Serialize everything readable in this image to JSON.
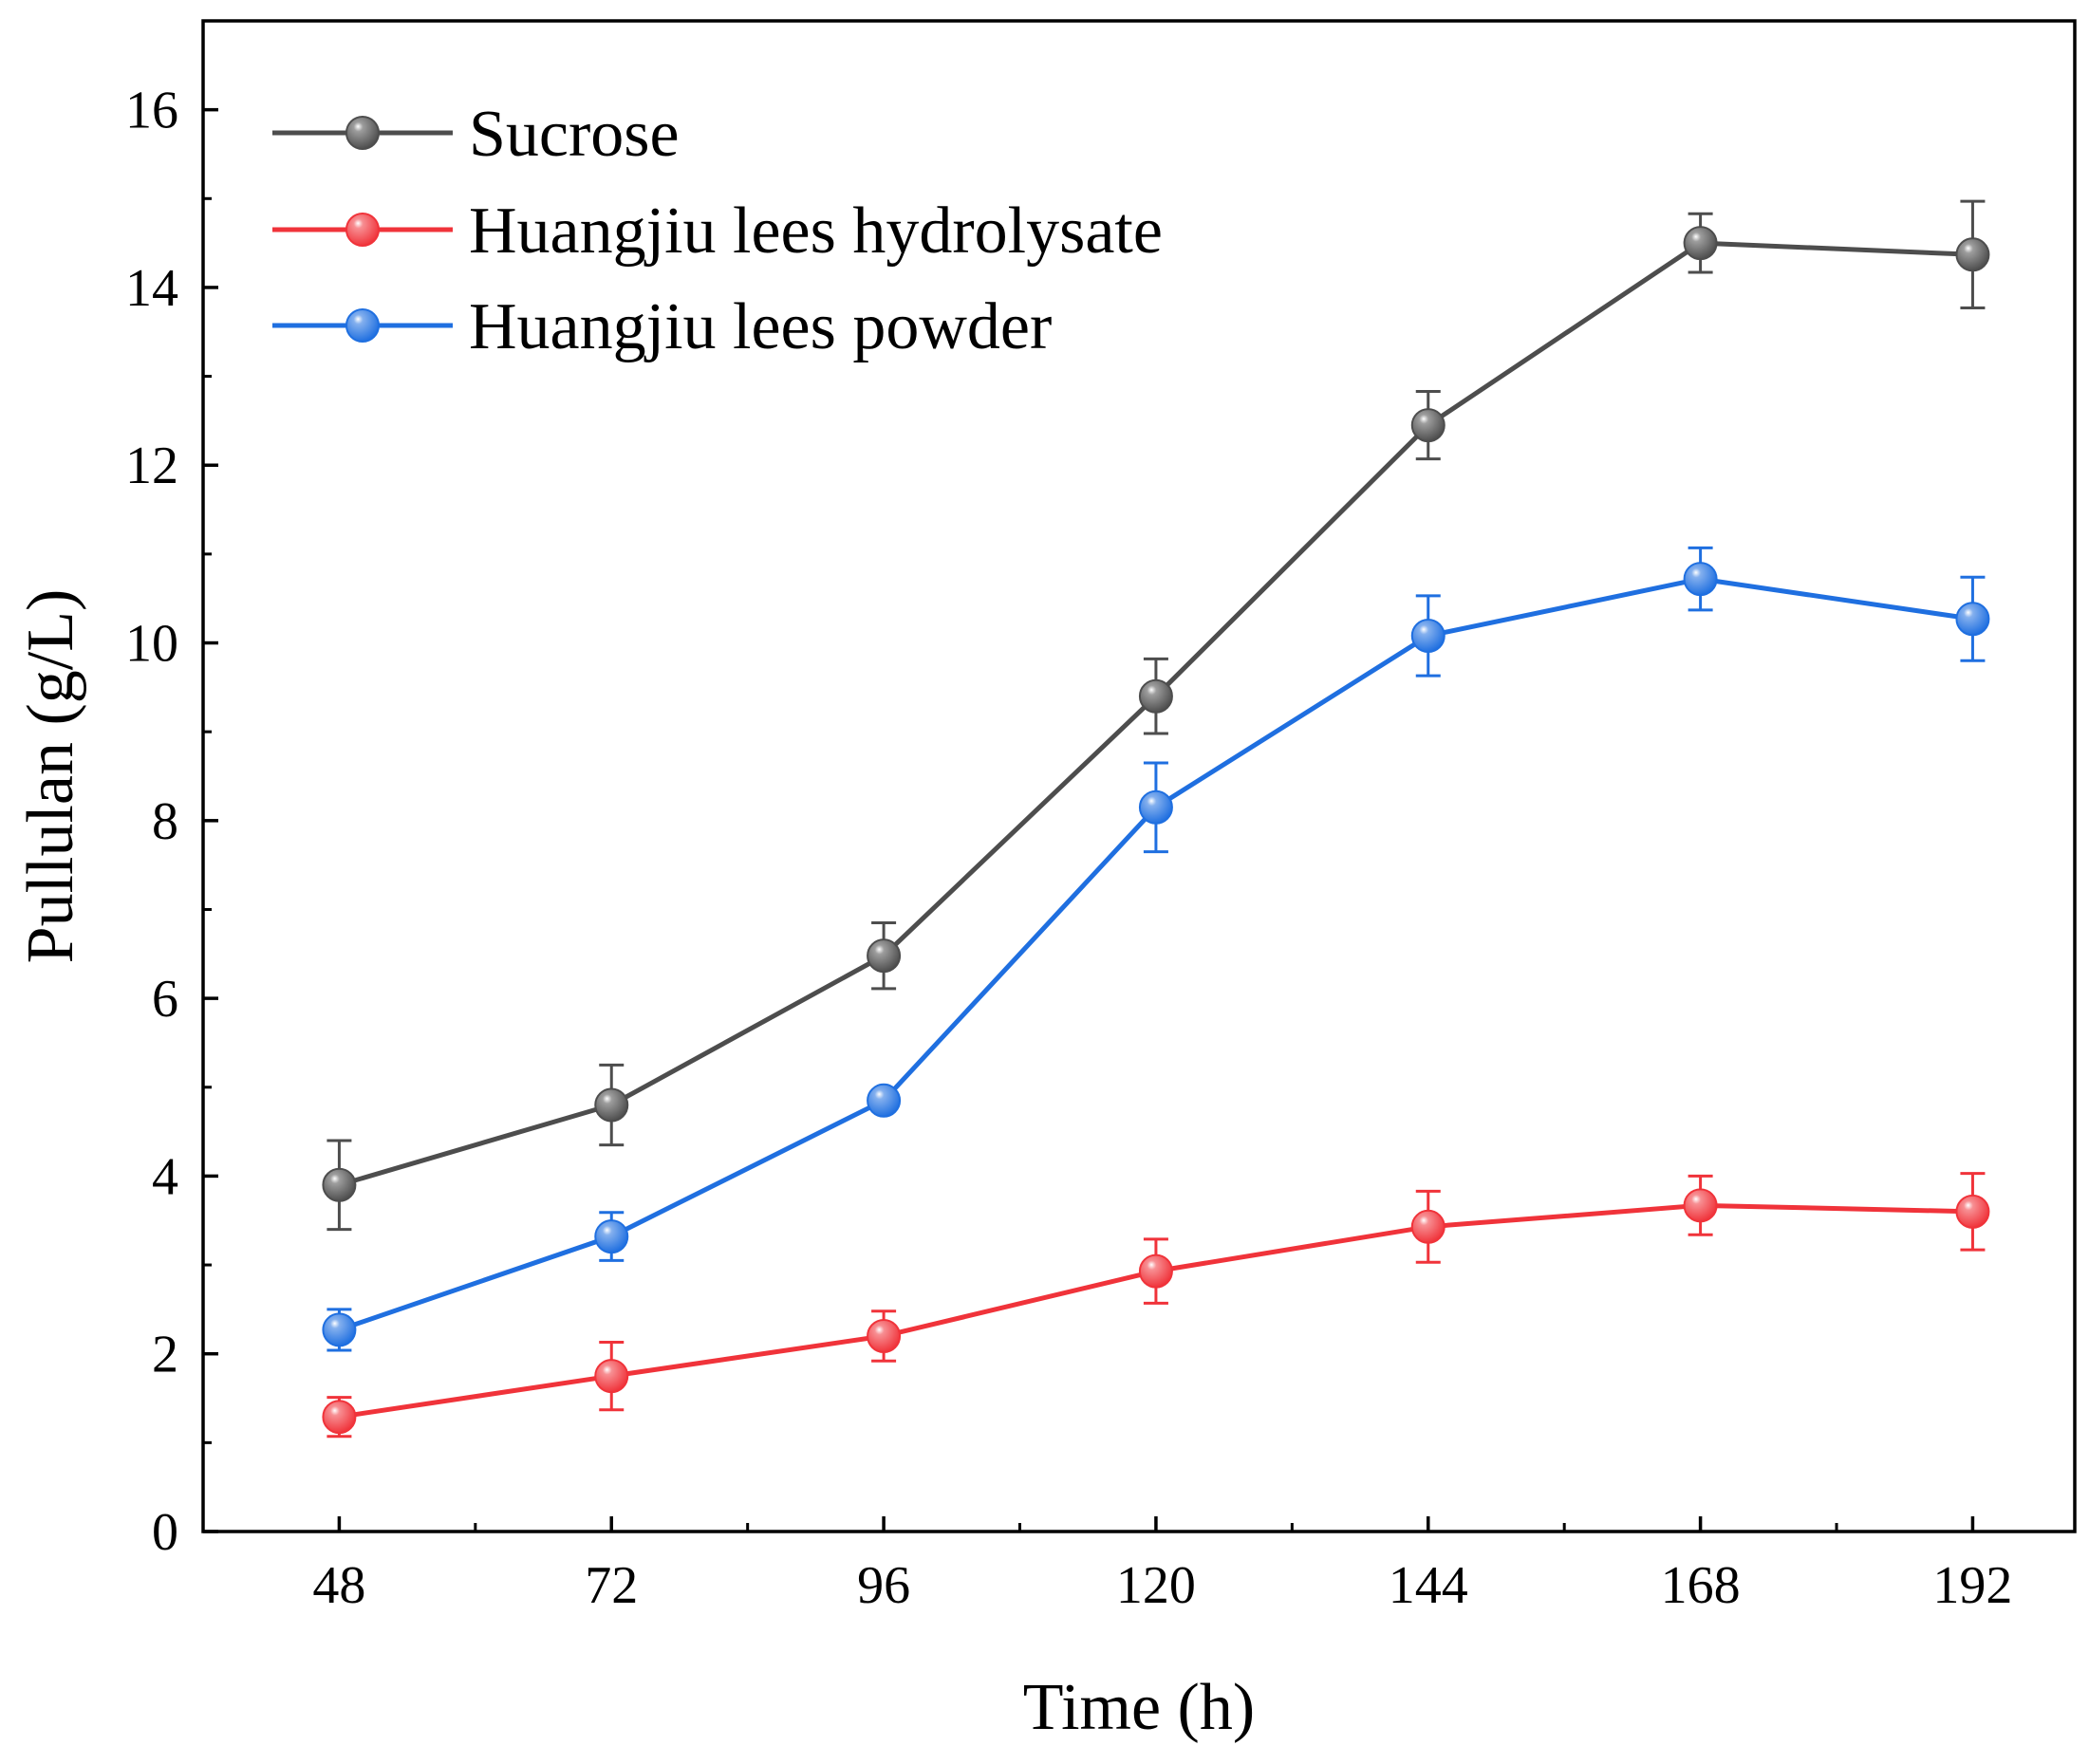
{
  "chart_data": {
    "type": "line",
    "title": "",
    "xlabel": "Time (h)",
    "ylabel": "Pullulan (g/L)",
    "x": [
      48,
      72,
      96,
      120,
      144,
      168,
      192
    ],
    "x_tick_labels": [
      "48",
      "72",
      "96",
      "120",
      "144",
      "168",
      "192"
    ],
    "xlim": [
      36,
      201
    ],
    "ylim": [
      0,
      17
    ],
    "y_ticks": [
      0,
      2,
      4,
      6,
      8,
      10,
      12,
      14,
      16
    ],
    "y_tick_labels": [
      "0",
      "2",
      "4",
      "6",
      "8",
      "10",
      "12",
      "14",
      "16"
    ],
    "grid": false,
    "legend_position": "top-left",
    "series": [
      {
        "name": "Sucrose",
        "color": "#4d4d4d",
        "values": [
          3.9,
          4.8,
          6.48,
          9.4,
          12.45,
          14.5,
          14.37
        ],
        "errors": [
          0.5,
          0.45,
          0.37,
          0.42,
          0.38,
          0.33,
          0.6
        ]
      },
      {
        "name": "Huangjiu lees hydrolysate",
        "color": "#f0333a",
        "values": [
          1.29,
          1.75,
          2.2,
          2.93,
          3.43,
          3.67,
          3.6
        ],
        "errors": [
          0.22,
          0.38,
          0.28,
          0.36,
          0.4,
          0.33,
          0.43
        ]
      },
      {
        "name": "Huangjiu lees powder",
        "color": "#1f6fe0",
        "values": [
          2.27,
          3.32,
          4.85,
          8.15,
          10.08,
          10.72,
          10.27
        ],
        "errors": [
          0.23,
          0.27,
          0.1,
          0.5,
          0.45,
          0.35,
          0.47
        ]
      }
    ]
  }
}
